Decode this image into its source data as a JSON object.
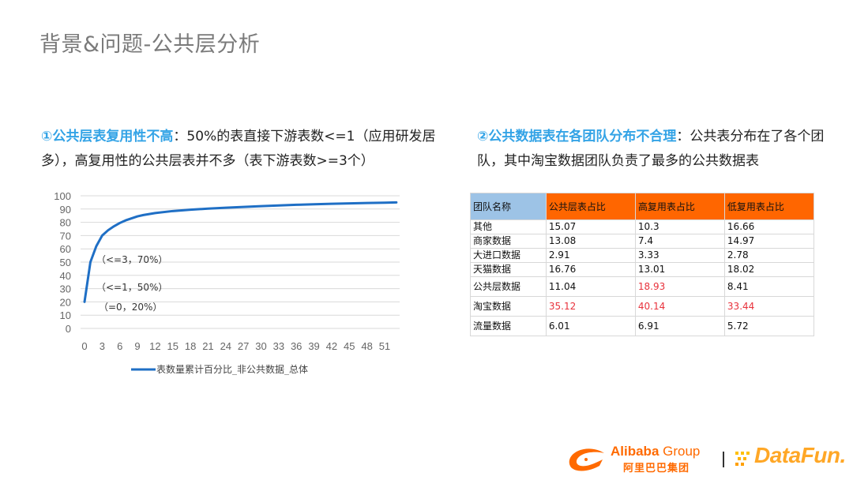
{
  "slide": {
    "title": "背景&问题-公共层分析"
  },
  "left_point": {
    "highlight": "①公共层表复用性不高",
    "text": "：50%的表直接下游表数<=1（应用研发居多），高复用性的公共层表并不多（表下游表数>=3个）"
  },
  "right_point": {
    "highlight": "②公共数据表在各团队分布不合理",
    "text": "：公共表分布在了各个团队，其中淘宝数据团队负责了最多的公共数据表"
  },
  "chart_data": {
    "type": "line",
    "title": "",
    "xlabel": "",
    "ylabel": "",
    "ylim": [
      0,
      100
    ],
    "xlim": [
      0,
      53
    ],
    "y_ticks": [
      "0",
      "10",
      "20",
      "30",
      "40",
      "50",
      "60",
      "70",
      "80",
      "90",
      "100"
    ],
    "x_ticks": [
      "0",
      "3",
      "6",
      "9",
      "12",
      "15",
      "18",
      "21",
      "24",
      "27",
      "30",
      "33",
      "36",
      "39",
      "42",
      "45",
      "48",
      "51"
    ],
    "grid": "horizontal",
    "legend_position": "bottom",
    "series": [
      {
        "name": "表数量累计百分比_非公共数据_总体",
        "color": "#1f6fc5",
        "x": [
          0,
          1,
          2,
          3,
          4,
          5,
          6,
          7,
          8,
          9,
          10,
          12,
          15,
          18,
          21,
          24,
          27,
          30,
          33,
          36,
          39,
          42,
          45,
          48,
          51,
          53
        ],
        "values": [
          20,
          50,
          62,
          70,
          74,
          77,
          79.5,
          81.5,
          83,
          84.5,
          85.5,
          87,
          88.5,
          89.5,
          90.3,
          91,
          91.6,
          92.2,
          92.7,
          93.2,
          93.6,
          94,
          94.3,
          94.6,
          94.8,
          95
        ]
      }
    ],
    "annotations": [
      {
        "text": "（<=3，70%）",
        "x": 3,
        "y": 70
      },
      {
        "text": "（<=1，50%）",
        "x": 1,
        "y": 50
      },
      {
        "text": "（=0，20%）",
        "x": 0,
        "y": 20
      }
    ]
  },
  "table": {
    "headers": [
      "团队名称",
      "公共层表占比",
      "高复用表占比",
      "低复用表占比"
    ],
    "header_colors": {
      "first": "#9dc3e6",
      "rest": "#ff6600"
    },
    "highlight_color": "#e8323c",
    "rows": [
      {
        "cells": [
          "其他",
          "15.07",
          "10.3",
          "16.66"
        ],
        "red": [
          false,
          false,
          false,
          false
        ]
      },
      {
        "cells": [
          "商家数据",
          "13.08",
          "7.4",
          "14.97"
        ],
        "red": [
          false,
          false,
          false,
          false
        ]
      },
      {
        "cells": [
          "大进口数据",
          "2.91",
          "3.33",
          "2.78"
        ],
        "red": [
          false,
          false,
          false,
          false
        ]
      },
      {
        "cells": [
          "天猫数据",
          "16.76",
          "13.01",
          "18.02"
        ],
        "red": [
          false,
          false,
          false,
          false
        ]
      },
      {
        "cells": [
          "公共层数据",
          "11.04",
          "18.93",
          "8.41"
        ],
        "red": [
          false,
          false,
          true,
          false
        ]
      },
      {
        "cells": [
          "淘宝数据",
          "35.12",
          "40.14",
          "33.44"
        ],
        "red": [
          false,
          true,
          true,
          true
        ]
      },
      {
        "cells": [
          "流量数据",
          "6.01",
          "6.91",
          "5.72"
        ],
        "red": [
          false,
          false,
          false,
          false
        ]
      }
    ]
  },
  "footer": {
    "alibaba_word": "Alibaba",
    "alibaba_group": " Group",
    "alibaba_cn": "阿里巴巴集团",
    "separator": "|",
    "datafun": "DataFun."
  }
}
